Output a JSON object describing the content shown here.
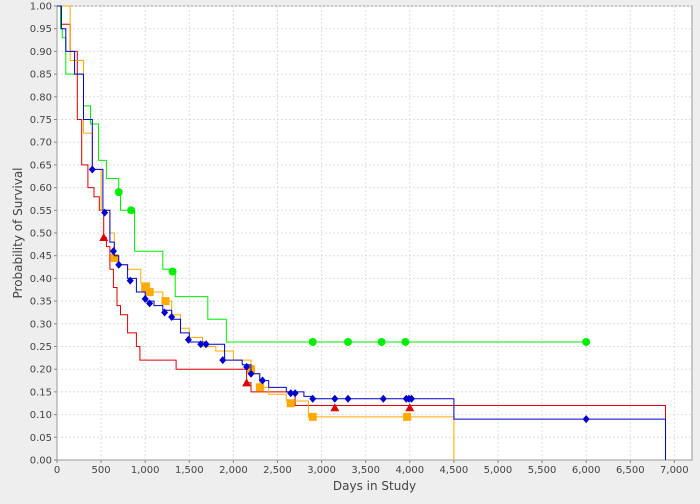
{
  "chart_data": {
    "type": "line",
    "xlabel": "Days in Study",
    "ylabel": "Probability of Survival",
    "xlim": [
      0,
      7200
    ],
    "ylim": [
      0,
      1.0
    ],
    "grid": true,
    "step": true,
    "x_ticks": [
      "0",
      "500",
      "1,000",
      "1,500",
      "2,000",
      "2,500",
      "3,000",
      "3,500",
      "4,000",
      "4,500",
      "5,000",
      "5,500",
      "6,000",
      "6,500",
      "7,000"
    ],
    "y_ticks": [
      "0.00",
      "0.05",
      "0.10",
      "0.15",
      "0.20",
      "0.25",
      "0.30",
      "0.35",
      "0.40",
      "0.45",
      "0.50",
      "0.55",
      "0.60",
      "0.65",
      "0.70",
      "0.75",
      "0.80",
      "0.85",
      "0.90",
      "0.95",
      "1.00"
    ],
    "series": [
      {
        "color": "#00ee00",
        "marker": "circle",
        "points": [
          [
            0,
            1.0
          ],
          [
            40,
            0.95
          ],
          [
            60,
            0.93
          ],
          [
            100,
            0.85
          ],
          [
            300,
            0.78
          ],
          [
            380,
            0.74
          ],
          [
            470,
            0.66
          ],
          [
            560,
            0.62
          ],
          [
            700,
            0.59
          ],
          [
            720,
            0.55
          ],
          [
            850,
            0.55
          ],
          [
            880,
            0.46
          ],
          [
            1100,
            0.46
          ],
          [
            1200,
            0.42
          ],
          [
            1330,
            0.41
          ],
          [
            1340,
            0.36
          ],
          [
            1700,
            0.36
          ],
          [
            1710,
            0.31
          ],
          [
            1900,
            0.31
          ],
          [
            1920,
            0.26
          ],
          [
            6000,
            0.26
          ]
        ],
        "censored": [
          [
            700,
            0.59
          ],
          [
            840,
            0.55
          ],
          [
            1310,
            0.415
          ],
          [
            2900,
            0.26
          ],
          [
            3300,
            0.26
          ],
          [
            3680,
            0.26
          ],
          [
            3950,
            0.26
          ],
          [
            6000,
            0.26
          ]
        ]
      },
      {
        "color": "#dd0000",
        "marker": "triangle",
        "points": [
          [
            0,
            1.0
          ],
          [
            50,
            0.96
          ],
          [
            150,
            0.9
          ],
          [
            230,
            0.75
          ],
          [
            280,
            0.65
          ],
          [
            350,
            0.6
          ],
          [
            420,
            0.58
          ],
          [
            480,
            0.55
          ],
          [
            530,
            0.49
          ],
          [
            560,
            0.47
          ],
          [
            600,
            0.42
          ],
          [
            640,
            0.38
          ],
          [
            680,
            0.34
          ],
          [
            720,
            0.32
          ],
          [
            800,
            0.28
          ],
          [
            900,
            0.25
          ],
          [
            940,
            0.22
          ],
          [
            1350,
            0.2
          ],
          [
            2150,
            0.17
          ],
          [
            2200,
            0.15
          ],
          [
            2700,
            0.12
          ],
          [
            6900,
            0.115
          ],
          [
            6900,
            0.0
          ]
        ],
        "censored": [
          [
            530,
            0.49
          ],
          [
            2150,
            0.17
          ],
          [
            3150,
            0.115
          ],
          [
            4000,
            0.115
          ]
        ]
      },
      {
        "color": "#ffaa00",
        "marker": "square",
        "points": [
          [
            0,
            1.0
          ],
          [
            150,
            0.88
          ],
          [
            300,
            0.72
          ],
          [
            400,
            0.64
          ],
          [
            500,
            0.55
          ],
          [
            600,
            0.5
          ],
          [
            650,
            0.45
          ],
          [
            700,
            0.43
          ],
          [
            800,
            0.42
          ],
          [
            950,
            0.39
          ],
          [
            1050,
            0.37
          ],
          [
            1200,
            0.35
          ],
          [
            1300,
            0.32
          ],
          [
            1400,
            0.29
          ],
          [
            1500,
            0.27
          ],
          [
            1650,
            0.25
          ],
          [
            1800,
            0.24
          ],
          [
            2000,
            0.22
          ],
          [
            2200,
            0.19
          ],
          [
            2300,
            0.16
          ],
          [
            2400,
            0.145
          ],
          [
            2600,
            0.13
          ],
          [
            2850,
            0.095
          ],
          [
            4500,
            0.095
          ],
          [
            4500,
            0.0
          ]
        ],
        "censored": [
          [
            650,
            0.445
          ],
          [
            1000,
            0.38
          ],
          [
            1050,
            0.37
          ],
          [
            1230,
            0.35
          ],
          [
            2200,
            0.2
          ],
          [
            2300,
            0.16
          ],
          [
            2650,
            0.125
          ],
          [
            2900,
            0.095
          ],
          [
            3970,
            0.095
          ]
        ]
      },
      {
        "color": "#0000cc",
        "marker": "diamond",
        "points": [
          [
            0,
            1.0
          ],
          [
            50,
            0.95
          ],
          [
            100,
            0.9
          ],
          [
            200,
            0.85
          ],
          [
            300,
            0.75
          ],
          [
            400,
            0.64
          ],
          [
            520,
            0.55
          ],
          [
            600,
            0.48
          ],
          [
            650,
            0.45
          ],
          [
            700,
            0.43
          ],
          [
            800,
            0.4
          ],
          [
            900,
            0.37
          ],
          [
            1000,
            0.35
          ],
          [
            1100,
            0.34
          ],
          [
            1200,
            0.33
          ],
          [
            1300,
            0.31
          ],
          [
            1400,
            0.28
          ],
          [
            1500,
            0.26
          ],
          [
            1700,
            0.255
          ],
          [
            1900,
            0.22
          ],
          [
            2100,
            0.21
          ],
          [
            2200,
            0.19
          ],
          [
            2300,
            0.175
          ],
          [
            2400,
            0.16
          ],
          [
            2600,
            0.15
          ],
          [
            2800,
            0.14
          ],
          [
            2900,
            0.135
          ],
          [
            4500,
            0.135
          ],
          [
            4500,
            0.09
          ],
          [
            6900,
            0.09
          ],
          [
            6900,
            0.0
          ]
        ],
        "censored": [
          [
            400,
            0.64
          ],
          [
            540,
            0.545
          ],
          [
            640,
            0.46
          ],
          [
            700,
            0.43
          ],
          [
            830,
            0.395
          ],
          [
            1000,
            0.355
          ],
          [
            1050,
            0.345
          ],
          [
            1220,
            0.325
          ],
          [
            1300,
            0.315
          ],
          [
            1490,
            0.265
          ],
          [
            1630,
            0.255
          ],
          [
            1690,
            0.255
          ],
          [
            1880,
            0.22
          ],
          [
            2150,
            0.205
          ],
          [
            2200,
            0.19
          ],
          [
            2330,
            0.175
          ],
          [
            2650,
            0.147
          ],
          [
            2700,
            0.147
          ],
          [
            2900,
            0.135
          ],
          [
            3150,
            0.135
          ],
          [
            3300,
            0.135
          ],
          [
            3700,
            0.135
          ],
          [
            3960,
            0.135
          ],
          [
            3990,
            0.135
          ],
          [
            4020,
            0.135
          ],
          [
            6000,
            0.09
          ]
        ]
      }
    ]
  }
}
